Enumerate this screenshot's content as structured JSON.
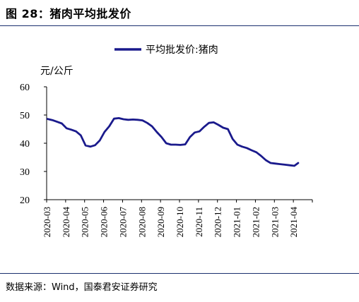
{
  "figure": {
    "title": "图 28：猪肉平均批发价",
    "source": "数据来源：Wind，国泰君安证券研究"
  },
  "colors": {
    "line": "#1a1a8c",
    "rule": "#1a2f6e",
    "axis": "#000000"
  },
  "chart_data": {
    "type": "line",
    "ylabel": "元/公斤",
    "ylim": [
      20,
      60
    ],
    "yticks": [
      20,
      30,
      40,
      50,
      60
    ],
    "categories": [
      "2020-03",
      "2020-04",
      "2020-05",
      "2020-06",
      "2020-07",
      "2020-08",
      "2020-09",
      "2020-10",
      "2020-11",
      "2020-12",
      "2021-01",
      "2021-02",
      "2021-03",
      "2021-04"
    ],
    "legend": "平均批发价:猪肉",
    "legend_position": "top",
    "grid": false,
    "series": [
      {
        "name": "平均批发价:猪肉",
        "x": [
          0,
          0.25,
          0.5,
          0.75,
          1.0,
          1.25,
          1.5,
          1.75,
          2.0,
          2.25,
          2.5,
          2.75,
          3.0,
          3.25,
          3.5,
          3.75,
          4.0,
          4.25,
          4.5,
          4.75,
          5.0,
          5.25,
          5.5,
          5.75,
          6.0,
          6.25,
          6.5,
          6.75,
          7.0,
          7.25,
          7.5,
          7.75,
          8.0,
          8.25,
          8.5,
          8.75,
          9.0,
          9.25,
          9.5,
          9.75,
          10.0,
          10.25,
          10.5,
          10.75,
          11.0,
          11.25,
          11.5,
          11.75,
          12.0,
          12.25,
          12.5,
          12.75,
          13.0,
          13.2
        ],
        "values": [
          48.6,
          48.2,
          47.6,
          47.0,
          45.3,
          44.8,
          44.2,
          42.8,
          39.2,
          38.8,
          39.3,
          41.0,
          44.0,
          46.0,
          48.7,
          48.9,
          48.5,
          48.3,
          48.4,
          48.3,
          48.1,
          47.2,
          46.0,
          44.0,
          42.2,
          40.0,
          39.5,
          39.5,
          39.4,
          39.6,
          42.2,
          43.8,
          44.2,
          45.8,
          47.2,
          47.4,
          46.5,
          45.5,
          45.0,
          41.5,
          39.5,
          38.8,
          38.3,
          37.5,
          36.8,
          35.5,
          34.0,
          33.0,
          32.8,
          32.6,
          32.4,
          32.2,
          32.0,
          33.0
        ]
      }
    ]
  }
}
